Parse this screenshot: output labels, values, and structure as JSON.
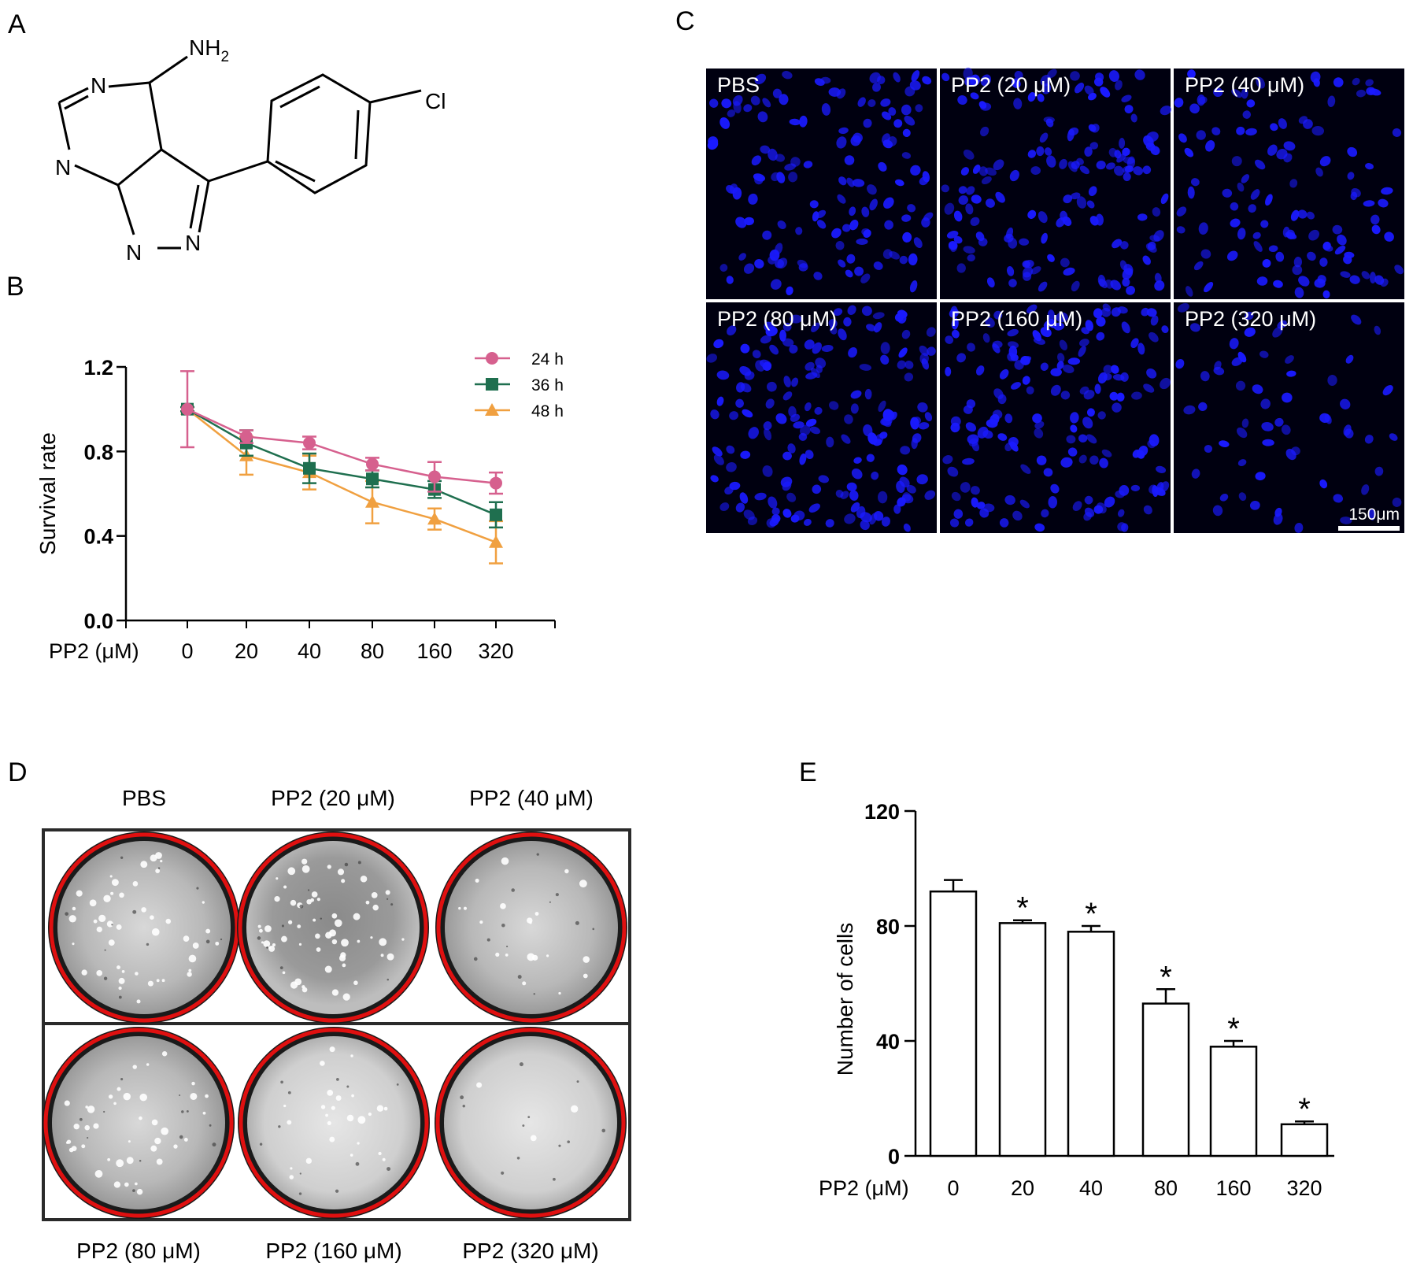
{
  "panels": {
    "a": {
      "letter": "A"
    },
    "b": {
      "letter": "B"
    },
    "c": {
      "letter": "C"
    },
    "d": {
      "letter": "D"
    },
    "e": {
      "letter": "E"
    }
  },
  "chemical": {
    "atoms": {
      "nh2_n": "NH",
      "nh2_sub": "2",
      "cl": "Cl",
      "n": "N"
    }
  },
  "micrographs": {
    "labels": [
      "PBS",
      "PP2 (20 μM)",
      "PP2 (40 μM)",
      "PP2 (80 μM)",
      "PP2 (160 μM)",
      "PP2 (320 μM)"
    ],
    "scale_bar": "150μm",
    "nuclei_color": "#1a1aff",
    "background_color": "#000010"
  },
  "dishes": {
    "labels": [
      "PBS",
      "PP2 (20 μM)",
      "PP2 (40 μM)",
      "PP2 (80 μM)",
      "PP2 (160 μM)",
      "PP2 (320 μM)"
    ],
    "rim_color": "#e01010"
  },
  "chart_data": [
    {
      "type": "line",
      "panel": "B",
      "categories": [
        "0",
        "20",
        "40",
        "80",
        "160",
        "320"
      ],
      "xlabel": "PP2 (μM)",
      "ylabel": "Survival rate",
      "ylim": [
        0,
        1.2
      ],
      "yticks": [
        "0.0",
        "0.4",
        "0.8",
        "1.2"
      ],
      "legend_placement": "top-right",
      "series": [
        {
          "name": "24 h",
          "color": "#d6608e",
          "marker": "circle",
          "values": [
            1.0,
            0.87,
            0.84,
            0.74,
            0.68,
            0.65
          ],
          "errors": [
            0.18,
            0.03,
            0.03,
            0.03,
            0.07,
            0.05
          ]
        },
        {
          "name": "36 h",
          "color": "#1f6f4f",
          "marker": "square",
          "values": [
            1.0,
            0.84,
            0.72,
            0.67,
            0.62,
            0.5
          ],
          "errors": [
            0.01,
            0.06,
            0.07,
            0.04,
            0.04,
            0.06
          ]
        },
        {
          "name": "48 h",
          "color": "#f0a040",
          "marker": "triangle",
          "values": [
            1.0,
            0.78,
            0.7,
            0.56,
            0.48,
            0.37
          ],
          "errors": [
            0.01,
            0.09,
            0.08,
            0.1,
            0.05,
            0.1
          ]
        }
      ]
    },
    {
      "type": "bar",
      "panel": "E",
      "categories": [
        "0",
        "20",
        "40",
        "80",
        "160",
        "320"
      ],
      "values": [
        92,
        81,
        78,
        53,
        38,
        11
      ],
      "errors": [
        4,
        1,
        2,
        5,
        2,
        1
      ],
      "significance": [
        "",
        "*",
        "*",
        "*",
        "*",
        "*"
      ],
      "xlabel": "PP2 (μM)",
      "ylabel": "Number of cells",
      "ylim": [
        0,
        120
      ],
      "yticks": [
        "0",
        "40",
        "80",
        "120"
      ]
    }
  ]
}
